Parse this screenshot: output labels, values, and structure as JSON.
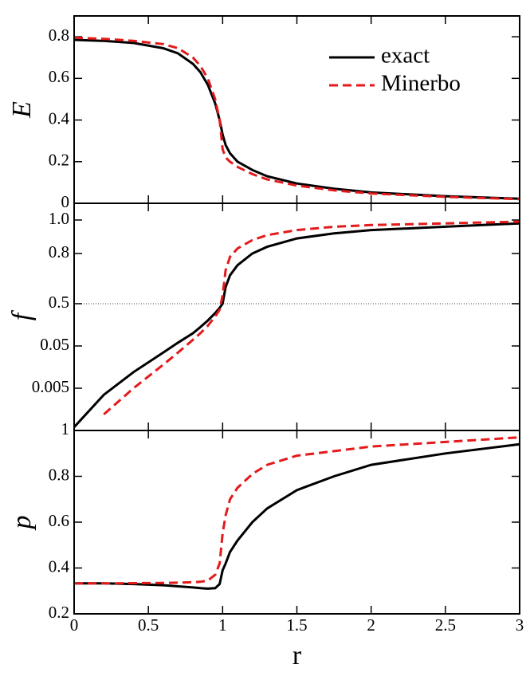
{
  "chart_data": [
    {
      "type": "line",
      "ylabel": "E",
      "x": [
        0,
        0.2,
        0.4,
        0.6,
        0.7,
        0.8,
        0.85,
        0.9,
        0.95,
        0.98,
        1.0,
        1.02,
        1.05,
        1.1,
        1.2,
        1.3,
        1.5,
        1.75,
        2.0,
        2.5,
        3.0
      ],
      "series": [
        {
          "name": "exact",
          "color": "#000000",
          "dash": false,
          "values": [
            0.785,
            0.78,
            0.77,
            0.745,
            0.72,
            0.67,
            0.63,
            0.57,
            0.48,
            0.4,
            0.33,
            0.28,
            0.24,
            0.2,
            0.16,
            0.13,
            0.095,
            0.07,
            0.052,
            0.034,
            0.022
          ]
        },
        {
          "name": "Minerbo",
          "color": "#e31a1c",
          "dash": true,
          "values": [
            0.795,
            0.79,
            0.78,
            0.765,
            0.745,
            0.7,
            0.66,
            0.6,
            0.5,
            0.4,
            0.26,
            0.22,
            0.2,
            0.175,
            0.14,
            0.115,
            0.085,
            0.062,
            0.047,
            0.031,
            0.02
          ]
        }
      ],
      "xlim": [
        0,
        3
      ],
      "xticks": [
        0,
        0.5,
        1,
        1.5,
        2,
        2.5,
        3
      ],
      "ylim": [
        0,
        0.9
      ],
      "yticks": [
        0,
        0.2,
        0.4,
        0.6,
        0.8
      ],
      "legend": "upper right"
    },
    {
      "type": "line",
      "ylabel": "f",
      "yscale": "log-linear",
      "split": 0.5,
      "x": [
        0,
        0.2,
        0.4,
        0.6,
        0.7,
        0.8,
        0.85,
        0.9,
        0.95,
        0.98,
        1.0,
        1.02,
        1.05,
        1.1,
        1.2,
        1.3,
        1.5,
        1.75,
        2.0,
        2.5,
        3.0
      ],
      "series": [
        {
          "name": "exact",
          "color": "#000000",
          "dash": false,
          "values": [
            0.0006,
            0.0035,
            0.012,
            0.035,
            0.06,
            0.1,
            0.14,
            0.2,
            0.3,
            0.4,
            0.5,
            0.6,
            0.67,
            0.73,
            0.8,
            0.84,
            0.89,
            0.92,
            0.94,
            0.96,
            0.98
          ]
        },
        {
          "name": "Minerbo",
          "color": "#e31a1c",
          "dash": true,
          "values": [
            null,
            0.0012,
            0.005,
            0.018,
            0.035,
            0.07,
            0.1,
            0.15,
            0.25,
            0.36,
            0.55,
            0.7,
            0.78,
            0.83,
            0.88,
            0.91,
            0.94,
            0.96,
            0.97,
            0.98,
            0.99
          ]
        }
      ],
      "xlim": [
        0,
        3
      ],
      "xticks": [
        0,
        0.5,
        1,
        1.5,
        2,
        2.5,
        3
      ],
      "ylim": [
        0.0005,
        1.1
      ],
      "yticks": [
        0.005,
        0.05,
        0.5,
        0.8,
        {
          "value": 1.0,
          "label": "1.0"
        }
      ]
    },
    {
      "type": "line",
      "ylabel": "p",
      "xlabel": "r",
      "x": [
        0,
        0.2,
        0.4,
        0.6,
        0.7,
        0.8,
        0.85,
        0.9,
        0.95,
        0.98,
        1.0,
        1.02,
        1.05,
        1.1,
        1.2,
        1.3,
        1.5,
        1.75,
        2.0,
        2.5,
        3.0
      ],
      "series": [
        {
          "name": "exact",
          "color": "#000000",
          "dash": false,
          "values": [
            0.333,
            0.333,
            0.33,
            0.325,
            0.32,
            0.315,
            0.312,
            0.31,
            0.312,
            0.33,
            0.39,
            0.42,
            0.47,
            0.52,
            0.6,
            0.66,
            0.74,
            0.8,
            0.85,
            0.9,
            0.94
          ]
        },
        {
          "name": "Minerbo",
          "color": "#e31a1c",
          "dash": true,
          "values": [
            0.333,
            0.333,
            0.334,
            0.335,
            0.336,
            0.338,
            0.34,
            0.345,
            0.37,
            0.42,
            0.55,
            0.63,
            0.7,
            0.75,
            0.81,
            0.85,
            0.89,
            0.91,
            0.93,
            0.95,
            0.97
          ]
        }
      ],
      "xlim": [
        0,
        3
      ],
      "xticks": [
        0,
        0.5,
        1,
        1.5,
        2,
        2.5,
        3
      ],
      "ylim": [
        0.2,
        1.0
      ],
      "yticks": [
        0.2,
        0.4,
        0.6,
        0.8,
        1
      ]
    }
  ]
}
